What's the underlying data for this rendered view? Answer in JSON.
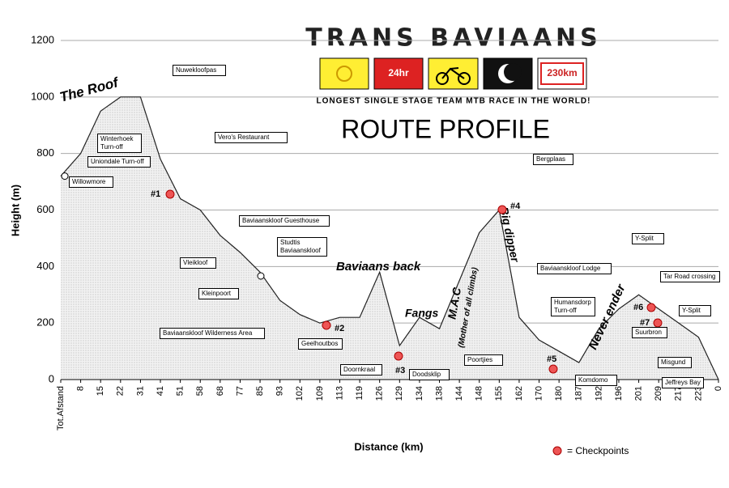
{
  "header": {
    "brand": "TRANS BAVIAANS",
    "badge_hours": "24hr",
    "badge_distance": "230km",
    "tagline": "LONGEST SINGLE STAGE TEAM MTB RACE IN THE WORLD!"
  },
  "chart_data": {
    "type": "area",
    "title": "ROUTE PROFILE",
    "x_label": "Distance (km)",
    "y_label": "Height (m)",
    "categories": [
      "Tot.Afstand",
      "8",
      "15",
      "22",
      "31",
      "41",
      "51",
      "58",
      "68",
      "77",
      "85",
      "93",
      "102",
      "109",
      "113",
      "119",
      "126",
      "129",
      "134",
      "138",
      "144",
      "148",
      "155",
      "162",
      "170",
      "180",
      "187",
      "192",
      "196",
      "201",
      "209",
      "217",
      "223",
      "0"
    ],
    "values": [
      720,
      800,
      950,
      1000,
      1000,
      780,
      640,
      600,
      510,
      450,
      380,
      280,
      230,
      200,
      220,
      220,
      380,
      120,
      220,
      180,
      350,
      520,
      600,
      220,
      140,
      100,
      60,
      180,
      250,
      300,
      250,
      200,
      150,
      0
    ],
    "color": "#555555",
    "ylim": [
      0,
      1200
    ],
    "yticks": [
      0,
      200,
      400,
      600,
      800,
      1000,
      1200
    ],
    "grid": true,
    "place_labels": [
      "Nuwekloofpas",
      "Vero's Restaurant",
      "Winterhoek Turn-off",
      "Uniondale Turn-off",
      "Willowmore",
      "Baviaanskloof Guesthouse",
      "Studtis Baviaanskloof",
      "Vleikloof",
      "Kleinpoort",
      "Baviaanskloof Wilderness Area",
      "Geelhoutbos",
      "Doornkraal",
      "Doodsklip",
      "Bergplaas",
      "Poortjies",
      "Baviaanskloof Lodge",
      "Humansdorp Turn-off",
      "Komdomo",
      "Y-Split",
      "Tar Road crossing",
      "Suurbron",
      "Y-Split",
      "Misgund",
      "Jeffreys Bay"
    ],
    "section_labels": [
      "The Roof",
      "Baviaans back",
      "Fangs",
      "M.A.C",
      "(Mother of all climbs)",
      "Big dipper",
      "Never ender"
    ],
    "checkpoints": [
      "#1",
      "#2",
      "#3",
      "#4",
      "#5",
      "#6",
      "#7"
    ],
    "legend": "= Checkpoints"
  }
}
